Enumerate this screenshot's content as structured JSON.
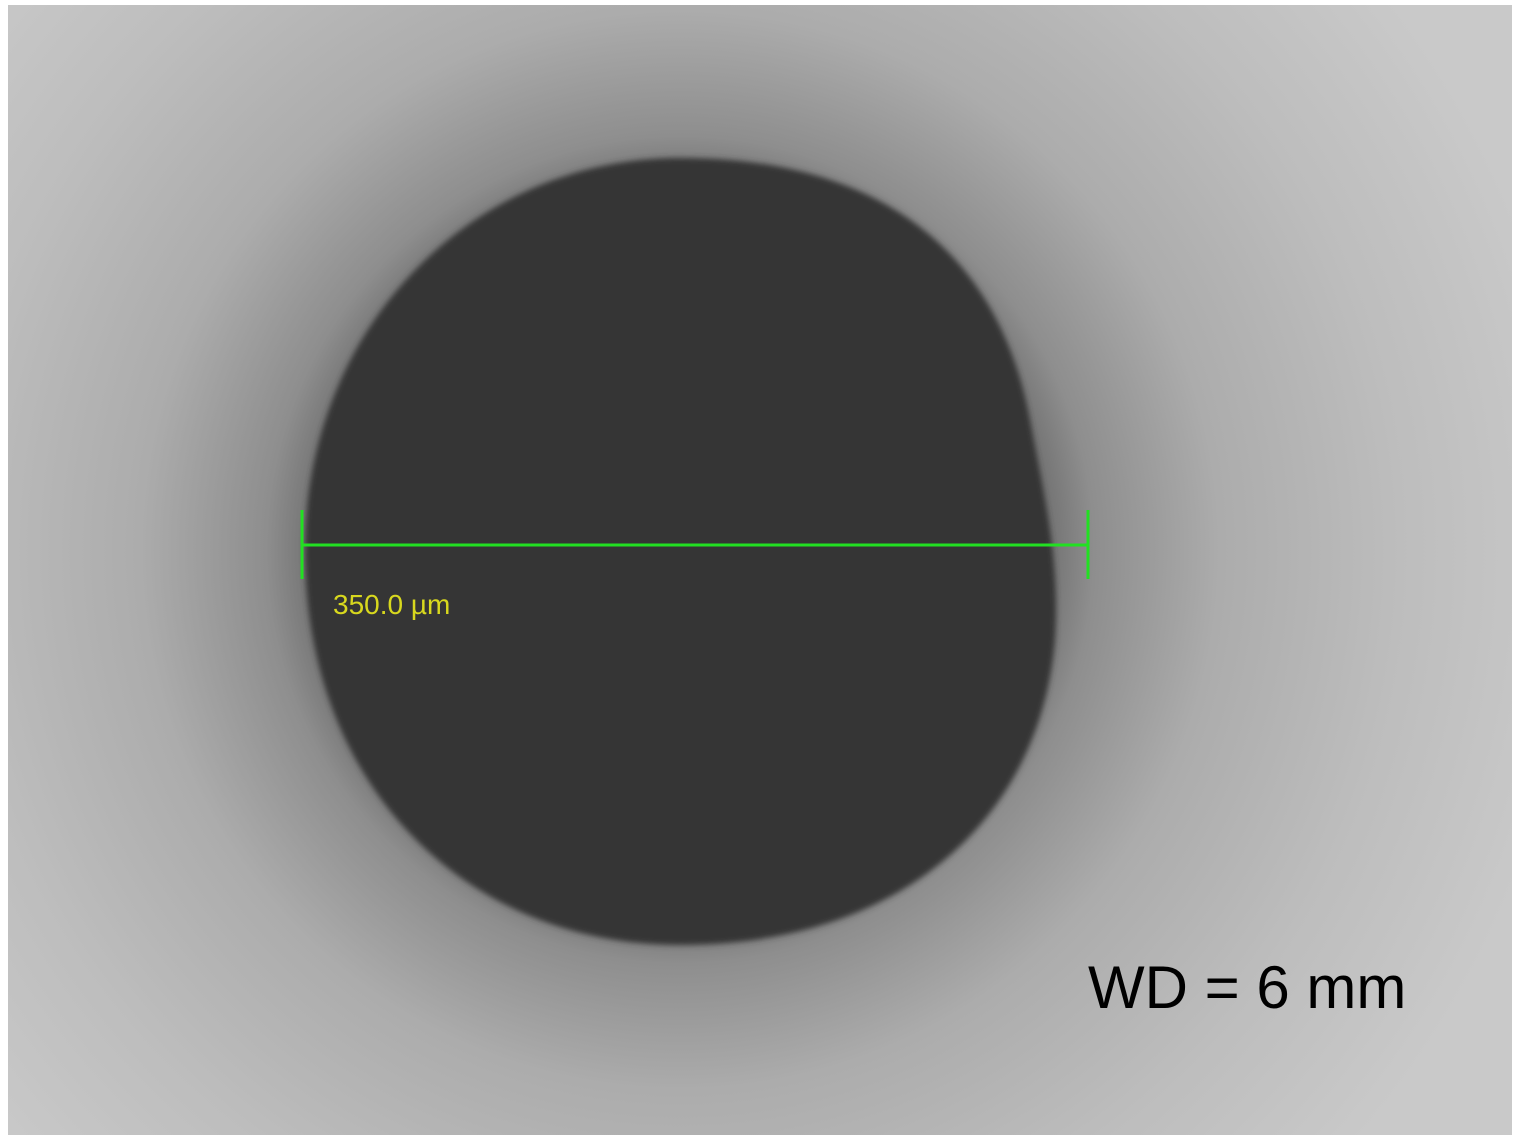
{
  "image": {
    "measurement_label": "350.0 µm",
    "annotation": "WD = 6 mm"
  }
}
